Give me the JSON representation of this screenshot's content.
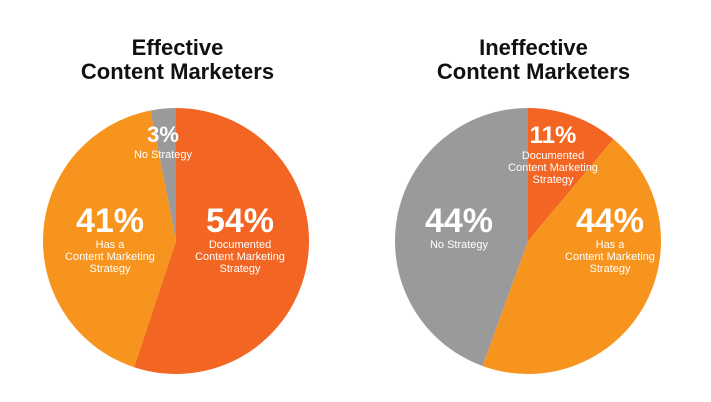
{
  "chart_data": [
    {
      "type": "pie",
      "title_lines": [
        "Effective",
        "Content Marketers"
      ],
      "slices": [
        {
          "label_lines": [
            "Documented",
            "Content Marketing",
            "Strategy"
          ],
          "value": 54,
          "pct_text": "54%",
          "color": "#F26522"
        },
        {
          "label_lines": [
            "Has a",
            "Content Marketing",
            "Strategy"
          ],
          "value": 41,
          "pct_text": "41%",
          "color": "#F7941D"
        },
        {
          "label_lines": [
            "No Strategy"
          ],
          "value": 3,
          "pct_text": "3%",
          "color": "#9A9A9A"
        }
      ]
    },
    {
      "type": "pie",
      "title_lines": [
        "Ineffective",
        "Content Marketers"
      ],
      "slices": [
        {
          "label_lines": [
            "Documented",
            "Content Marketing",
            "Strategy"
          ],
          "value": 11,
          "pct_text": "11%",
          "color": "#F26522"
        },
        {
          "label_lines": [
            "Has a",
            "Content Marketing",
            "Strategy"
          ],
          "value": 44,
          "pct_text": "44%",
          "color": "#F7941D"
        },
        {
          "label_lines": [
            "No Strategy"
          ],
          "value": 44,
          "pct_text": "44%",
          "color": "#9A9A9A"
        }
      ]
    }
  ]
}
